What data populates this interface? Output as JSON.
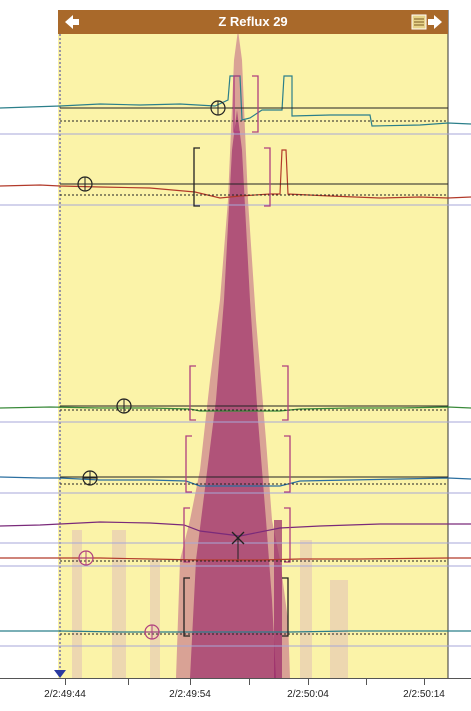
{
  "header": {
    "title": "Z Reflux 29",
    "prev_icon": "arrow-left-icon",
    "next_icon": "list-arrow-right-icon",
    "color": "#a9692a"
  },
  "time_axis": {
    "labels": [
      "2/2:49:44",
      "2/2:49:54",
      "2/2:50:04",
      "2/2:50:14"
    ]
  },
  "colors": {
    "highlight_region": "#fbf3a8",
    "impedance_spike": "#b0407f",
    "marker": "#b0407f"
  }
}
